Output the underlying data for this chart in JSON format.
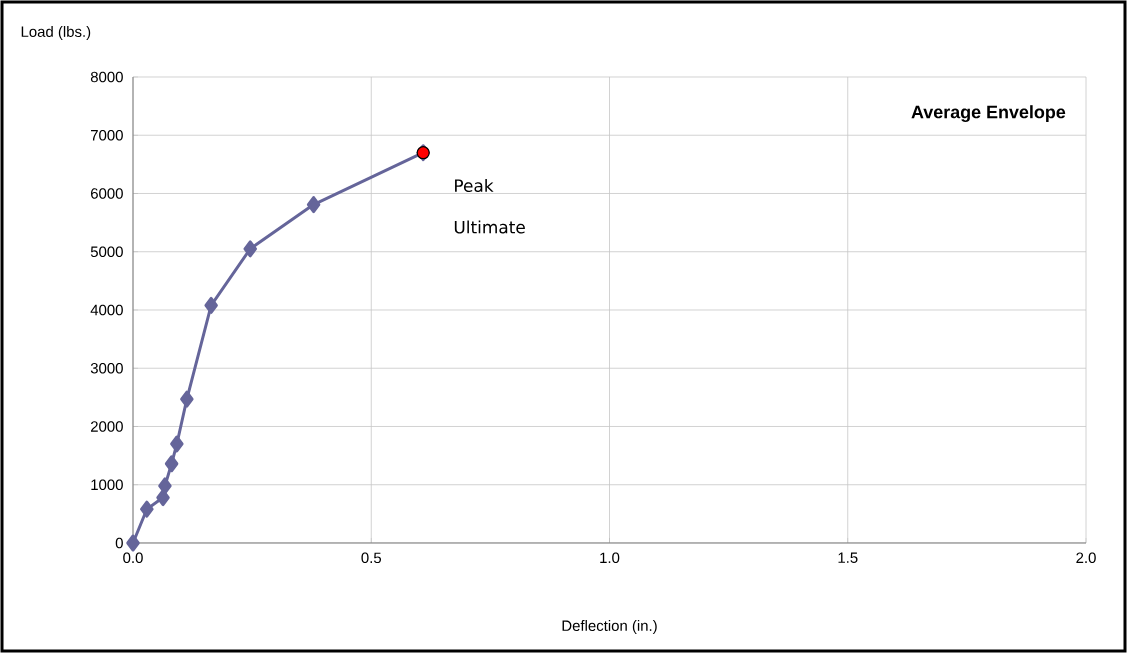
{
  "chart_data": {
    "type": "line",
    "title": "Average Envelope",
    "xlabel": "Deflection (in.)",
    "ylabel": "Load (lbs.)",
    "series": [
      {
        "color": "#65659a",
        "marker": "diamond",
        "x": [
          0,
          0.029,
          0.063,
          0.067,
          0.081,
          0.092,
          0.113,
          0.164,
          0.246,
          0.379,
          0.609
        ],
        "values": [
          0,
          580,
          780,
          980,
          1360,
          1700,
          2470,
          4080,
          5050,
          5810,
          6700
        ]
      },
      {
        "type": "scatter",
        "color": "#ff0000",
        "marker": "circle",
        "x": [
          0.609
        ],
        "values": [
          6700
        ]
      }
    ],
    "annotations": [
      {
        "text": "Peak",
        "x": 0.609,
        "y": 6700
      },
      "Ultimate"
    ],
    "xlim": [
      0,
      2
    ],
    "xticks": [
      {
        "value": 0,
        "label": "0.0"
      },
      0.5,
      {
        "value": 1,
        "label": "1.0"
      },
      1.5,
      {
        "value": 2,
        "label": "2.0"
      }
    ],
    "ylim": [
      0,
      8000
    ],
    "yticks": [
      0,
      1000,
      2000,
      3000,
      4000,
      5000,
      6000,
      7000,
      8000
    ],
    "grid": true
  }
}
